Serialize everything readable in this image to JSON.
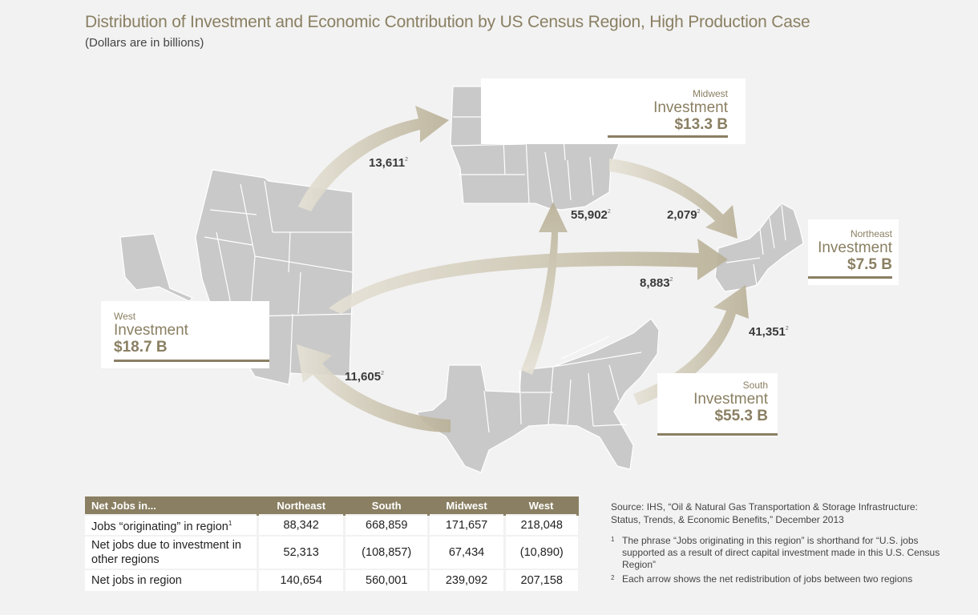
{
  "title": "Distribution of Investment and Economic Contribution by US Census Region, High Production Case",
  "subtitle": "(Dollars are in billions)",
  "colors": {
    "accent": "#8a7f62",
    "arrow": "#c7bfa8",
    "map": "#c8c8c8"
  },
  "regions": {
    "west": {
      "name": "West",
      "label": "Investment",
      "value": "$18.7 B"
    },
    "midwest": {
      "name": "Midwest",
      "label": "Investment",
      "value": "$13.3 B"
    },
    "northeast": {
      "name": "Northeast",
      "label": "Investment",
      "value": "$7.5 B"
    },
    "south": {
      "name": "South",
      "label": "Investment",
      "value": "$55.3 B"
    }
  },
  "flows": {
    "west_to_midwest": {
      "value": "13,611",
      "note": "2"
    },
    "south_to_midwest": {
      "value": "55,902",
      "note": "2"
    },
    "midwest_to_northeast": {
      "value": "2,079",
      "note": "2"
    },
    "west_to_northeast": {
      "value": "8,883",
      "note": "2"
    },
    "south_to_northeast": {
      "value": "41,351",
      "note": "2"
    },
    "south_to_west": {
      "value": "11,605",
      "note": "2"
    }
  },
  "table": {
    "headers": [
      "Net Jobs in...",
      "Northeast",
      "South",
      "Midwest",
      "West"
    ],
    "rows": [
      {
        "label": "Jobs “originating” in region",
        "note": "1",
        "values": [
          "88,342",
          "668,859",
          "171,657",
          "218,048"
        ]
      },
      {
        "label": "Net jobs due to investment in other regions",
        "values": [
          "52,313",
          "(108,857)",
          "67,434",
          "(10,890)"
        ]
      },
      {
        "label": "Net jobs in region",
        "values": [
          "140,654",
          "560,001",
          "239,092",
          "207,158"
        ]
      }
    ]
  },
  "source": "Source: IHS, “Oil & Natural Gas Transportation & Storage Infrastructure: Status, Trends, & Economic Benefits,” December 2013",
  "footnotes": [
    {
      "num": "1",
      "text": "The phrase “Jobs originating in this region” is shorthand for “U.S. jobs supported as a result of direct capital investment made in this U.S. Census Region”"
    },
    {
      "num": "2",
      "text": "Each arrow shows the net redistribution of jobs between two regions"
    }
  ]
}
